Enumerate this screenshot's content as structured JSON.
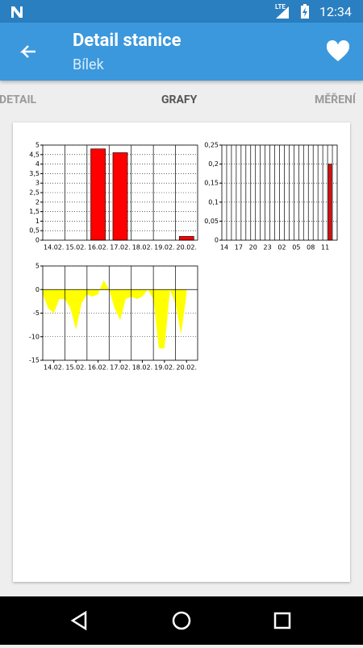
{
  "status_bar": {
    "network": "LTE",
    "time": "12:34"
  },
  "app_bar": {
    "title": "Detail stanice",
    "subtitle": "Bílek"
  },
  "tabs": [
    "DETAIL",
    "GRAFY",
    "MĚŘENÍ"
  ],
  "chart_data": [
    {
      "type": "bar",
      "color": "#ff0000",
      "grid": true,
      "categories": [
        "14.02.",
        "15.02.",
        "16.02.",
        "17.02.",
        "18.02.",
        "19.02.",
        "20.02."
      ],
      "values": [
        0,
        0,
        4.8,
        4.6,
        0,
        0,
        0.2
      ],
      "ylim": [
        0,
        5
      ],
      "yticks": [
        0,
        {
          "value": 0.5,
          "label": "0,5"
        },
        1,
        {
          "value": 1.5,
          "label": "1,5"
        },
        2,
        {
          "value": 2.5,
          "label": "2,5"
        },
        3,
        {
          "value": 3.5,
          "label": "3,5"
        },
        4,
        {
          "value": 4.5,
          "label": "4,5"
        },
        5
      ]
    },
    {
      "type": "bar",
      "color": "#ff0000",
      "grid": true,
      "categories": [
        "14",
        null,
        null,
        "17",
        null,
        null,
        "20",
        null,
        null,
        "23",
        null,
        null,
        "02",
        null,
        null,
        "05",
        null,
        null,
        "08",
        null,
        null,
        "11",
        null,
        null
      ],
      "values": [
        0,
        0,
        0,
        0,
        0,
        0,
        0,
        0,
        0,
        0,
        0,
        0,
        0,
        0,
        0,
        0,
        0,
        0,
        0,
        0,
        0,
        0,
        0.2,
        0
      ],
      "ylim": [
        0,
        0.25
      ],
      "yticks": [
        0,
        {
          "value": 0.05,
          "label": "0,05"
        },
        {
          "value": 0.1,
          "label": "0,1"
        },
        {
          "value": 0.15,
          "label": "0,15"
        },
        {
          "value": 0.2,
          "label": "0,2"
        },
        {
          "value": 0.25,
          "label": "0,25"
        }
      ]
    },
    {
      "type": "area",
      "color": "#ffff00",
      "grid": true,
      "x": [
        0,
        0.25,
        0.5,
        0.75,
        1,
        1.25,
        1.5,
        1.75,
        2,
        2.25,
        2.5,
        2.75,
        3,
        3.25,
        3.5,
        3.75,
        4,
        4.25,
        4.5,
        4.75,
        5,
        5.25,
        5.5,
        5.75,
        6,
        6.25,
        6.5
      ],
      "values": [
        -1,
        -4,
        -5,
        -2,
        -2,
        -4,
        -8.5,
        -3,
        -1,
        -1.5,
        -1,
        2,
        0,
        -4,
        -6.5,
        -2,
        -1.5,
        -2,
        -1.5,
        0,
        -2,
        -12.5,
        -12.5,
        0,
        -3,
        -9.5,
        -1
      ],
      "xlim": [
        0,
        7
      ],
      "xticks": [
        {
          "value": 0.5,
          "label": "14.02."
        },
        {
          "value": 1.5,
          "label": "15.02."
        },
        {
          "value": 2.5,
          "label": "16.02."
        },
        {
          "value": 3.5,
          "label": "17.02."
        },
        {
          "value": 4.5,
          "label": "18.02."
        },
        {
          "value": 5.5,
          "label": "19.02."
        },
        {
          "value": 6.5,
          "label": "20.02."
        }
      ],
      "ylim": [
        -15,
        5
      ],
      "yticks": [
        -15,
        -10,
        -5,
        0,
        5
      ]
    }
  ]
}
